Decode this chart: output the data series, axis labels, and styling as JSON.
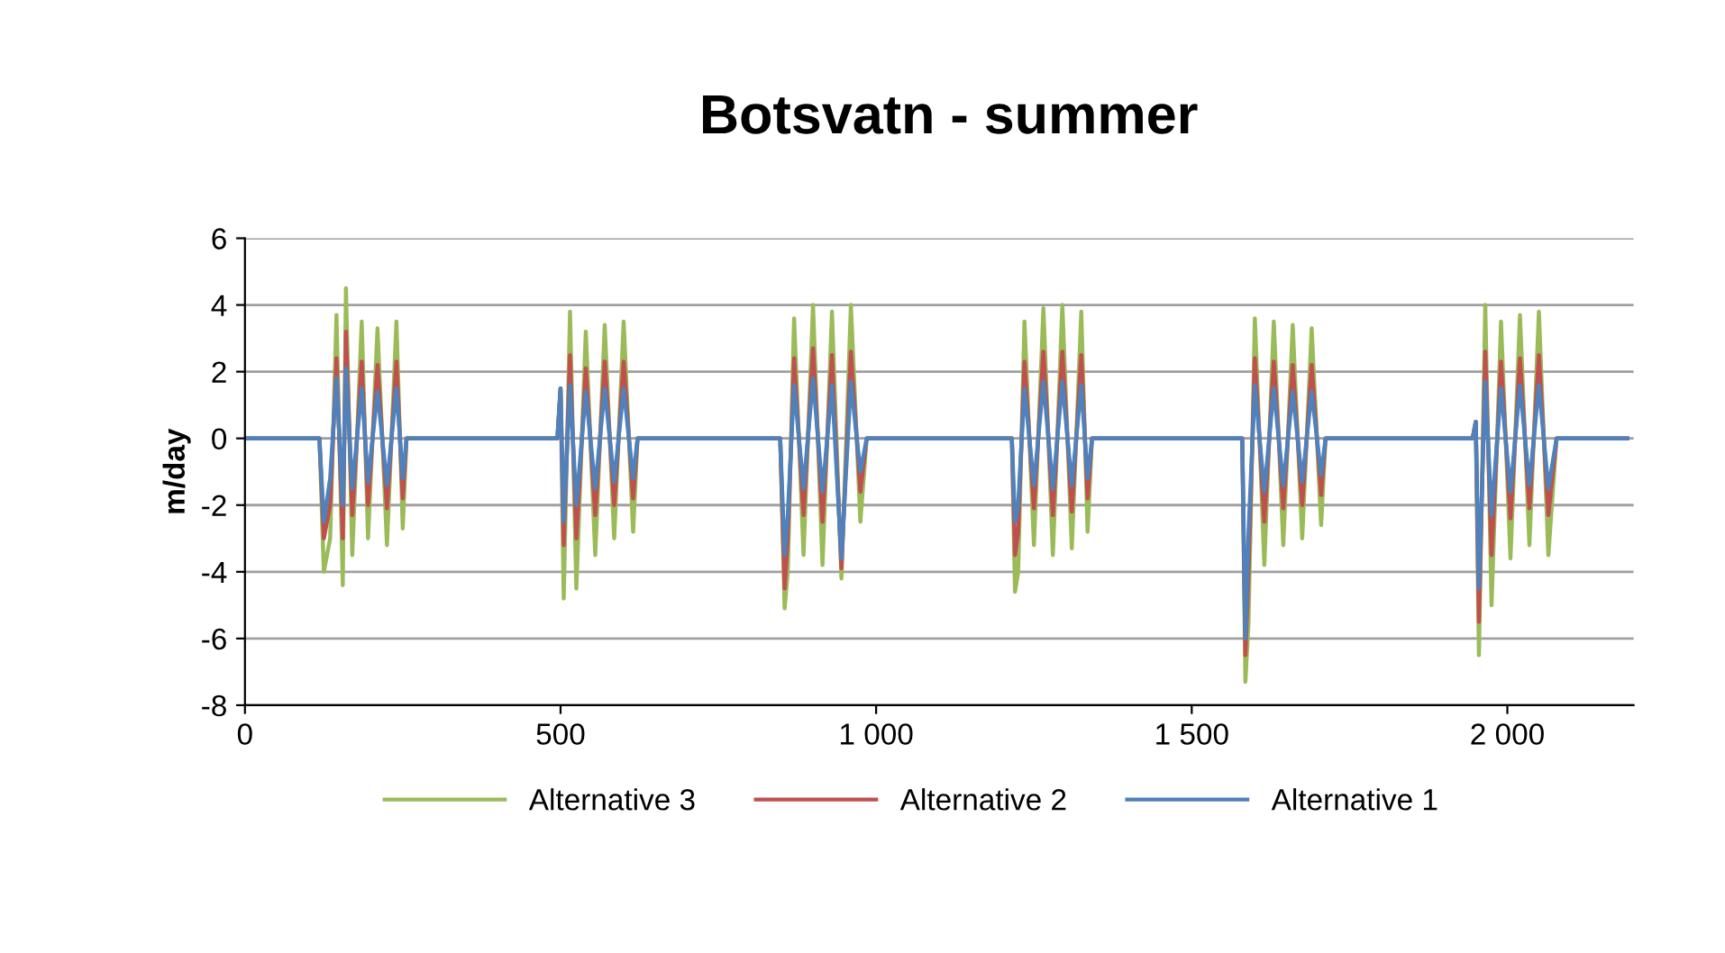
{
  "chart_data": {
    "type": "line",
    "title": "Botsvatn - summer",
    "ylabel": "m/day",
    "x": [
      0,
      118,
      125,
      135,
      145,
      155,
      160,
      170,
      185,
      195,
      210,
      225,
      240,
      250,
      256,
      495,
      500,
      505,
      515,
      525,
      540,
      555,
      570,
      585,
      600,
      615,
      622,
      848,
      855,
      860,
      870,
      885,
      900,
      915,
      930,
      945,
      960,
      975,
      985,
      1215,
      1220,
      1225,
      1235,
      1250,
      1265,
      1280,
      1295,
      1310,
      1325,
      1335,
      1342,
      1580,
      1585,
      1590,
      1600,
      1615,
      1630,
      1645,
      1660,
      1675,
      1690,
      1705,
      1712,
      1945,
      1950,
      1955,
      1965,
      1975,
      1990,
      2005,
      2020,
      2035,
      2050,
      2065,
      2078,
      2190
    ],
    "series": [
      {
        "name": "Alternative 3",
        "color": "#9bbb59",
        "values": [
          0,
          0,
          -4,
          -3,
          3.7,
          -4.4,
          4.5,
          -3.5,
          3.5,
          -3,
          3.3,
          -3.2,
          3.5,
          -2.7,
          0,
          0,
          1.5,
          -4.8,
          3.8,
          -4.5,
          3.2,
          -3.5,
          3.4,
          -3,
          3.5,
          -2.8,
          0,
          0,
          -5.1,
          -4,
          3.6,
          -3.5,
          4,
          -3.8,
          3.8,
          -4.2,
          4,
          -2.5,
          0,
          0,
          -4.6,
          -4,
          3.5,
          -3.2,
          3.9,
          -3.5,
          4,
          -3.3,
          3.8,
          -2.8,
          0,
          0,
          -7.3,
          -5.5,
          3.6,
          -3.8,
          3.5,
          -3.2,
          3.4,
          -3,
          3.3,
          -2.6,
          0,
          0,
          0.5,
          -6.5,
          4,
          -5,
          3.5,
          -3.6,
          3.7,
          -3.2,
          3.8,
          -3.5,
          0,
          0
        ]
      },
      {
        "name": "Alternative 2",
        "color": "#c0504d",
        "values": [
          0,
          0,
          -3,
          -2,
          2.4,
          -3,
          3.2,
          -2.3,
          2.3,
          -2,
          2.2,
          -2.1,
          2.3,
          -1.8,
          0,
          0,
          1.5,
          -3.2,
          2.5,
          -3,
          2.1,
          -2.3,
          2.3,
          -2,
          2.3,
          -1.8,
          0,
          0,
          -4.5,
          -3,
          2.4,
          -2.3,
          2.7,
          -2.5,
          2.5,
          -3.9,
          2.6,
          -1.6,
          0,
          0,
          -3.5,
          -2.8,
          2.3,
          -2.1,
          2.6,
          -2.3,
          2.6,
          -2.2,
          2.5,
          -1.8,
          0,
          0,
          -6.5,
          -4,
          2.4,
          -2.5,
          2.3,
          -2.1,
          2.2,
          -2,
          2.2,
          -1.7,
          0,
          0,
          0.5,
          -5.5,
          2.6,
          -3.5,
          2.3,
          -2.4,
          2.4,
          -2.1,
          2.5,
          -2.3,
          0,
          0
        ]
      },
      {
        "name": "Alternative 1",
        "color": "#4f81bd",
        "values": [
          0,
          0,
          -2.5,
          -1.2,
          1.8,
          -2,
          2.1,
          -1.5,
          1.5,
          -1.3,
          1.4,
          -1.4,
          1.5,
          -1.2,
          0,
          0,
          1.5,
          -2.5,
          1.6,
          -2,
          1.4,
          -1.5,
          1.5,
          -1.3,
          1.5,
          -1.2,
          0,
          0,
          -3.5,
          -2.3,
          1.6,
          -1.5,
          1.8,
          -1.6,
          1.6,
          -3.6,
          1.7,
          -1,
          0,
          0,
          -2.5,
          -2,
          1.5,
          -1.4,
          1.7,
          -1.5,
          1.7,
          -1.4,
          1.6,
          -1.2,
          0,
          0,
          -6,
          -2.8,
          1.6,
          -1.6,
          1.5,
          -1.4,
          1.4,
          -1.3,
          1.4,
          -1.1,
          0,
          0,
          0.5,
          -4.5,
          1.7,
          -2.3,
          1.5,
          -1.6,
          1.6,
          -1.4,
          1.6,
          -1.5,
          0,
          0
        ]
      }
    ],
    "xlim": [
      0,
      2200
    ],
    "xticks": [
      0,
      500,
      {
        "value": 1000,
        "label": "1 000"
      },
      {
        "value": 1500,
        "label": "1 500"
      },
      {
        "value": 2000,
        "label": "2 000"
      }
    ],
    "ylim": [
      -8,
      6
    ],
    "yticks": [
      -8,
      -6,
      -4,
      -2,
      0,
      2,
      4,
      6
    ],
    "grid": "y",
    "legend": "bottom",
    "marker": "none",
    "line_style": "solid"
  }
}
